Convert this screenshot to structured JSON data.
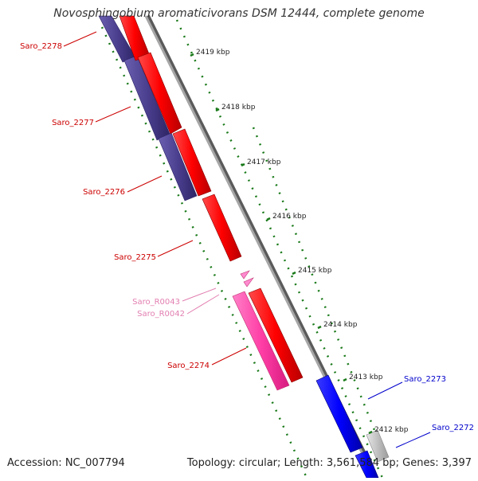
{
  "title": "Novosphingobium aromaticivorans DSM 12444, complete genome",
  "footer": {
    "accession": "Accession: NC_007794",
    "topology": "Topology: circular; Length: 3,561,584 bp; Genes: 3,397"
  },
  "ruler": [
    {
      "label": "2419 kbp"
    },
    {
      "label": "2418 kbp"
    },
    {
      "label": "2417 kbp"
    },
    {
      "label": "2416 kbp"
    },
    {
      "label": "2415 kbp"
    },
    {
      "label": "2414 kbp"
    },
    {
      "label": "2413 kbp"
    },
    {
      "label": "2412 kbp"
    }
  ],
  "gene_labels": [
    {
      "name": "Saro_2278",
      "color": "#cc0000"
    },
    {
      "name": "Saro_2277",
      "color": "#cc0000"
    },
    {
      "name": "Saro_2276",
      "color": "#cc0000"
    },
    {
      "name": "Saro_2275",
      "color": "#cc0000"
    },
    {
      "name": "Saro_R0043",
      "color": "#e27fb0"
    },
    {
      "name": "Saro_R0042",
      "color": "#e27fb0"
    },
    {
      "name": "Saro_2274",
      "color": "#cc0000"
    },
    {
      "name": "Saro_2273",
      "color": "#0000cc"
    },
    {
      "name": "Saro_2272",
      "color": "#0000cc"
    }
  ],
  "colors": {
    "forward_cds": "#ff0000",
    "reverse_cds": "#0000ff",
    "rna": "#ff69b4",
    "feature_purple": "#4b3f8f",
    "backbone": "#8c8c8c",
    "ruler": "#1a7a1a"
  }
}
